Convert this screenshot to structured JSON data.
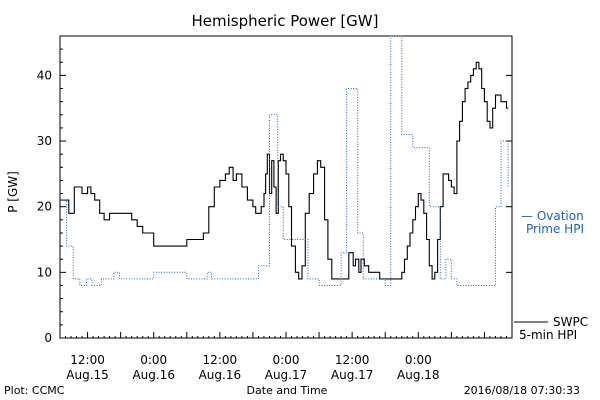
{
  "chart_data": {
    "type": "line",
    "title": "Hemispheric Power [GW]",
    "ylabel": "P [GW]",
    "xlabel": "Date and Time",
    "ylim": [
      0,
      46
    ],
    "yticks": [
      0,
      10,
      20,
      30,
      40
    ],
    "x_unit": "hours since 2016-08-15 00:00 UT",
    "xlim": [
      7,
      89
    ],
    "xtick_labels": [
      {
        "x": 12,
        "time": "12:00",
        "date": "Aug.15"
      },
      {
        "x": 24,
        "time": "0:00",
        "date": "Aug.16"
      },
      {
        "x": 36,
        "time": "12:00",
        "date": "Aug.16"
      },
      {
        "x": 48,
        "time": "0:00",
        "date": "Aug.17"
      },
      {
        "x": 60,
        "time": "12:00",
        "date": "Aug.17"
      },
      {
        "x": 72,
        "time": "0:00",
        "date": "Aug.18"
      }
    ],
    "series": [
      {
        "name": "SWPC 5-min HPI",
        "color": "#000000",
        "style": "solid",
        "x": [
          7.0,
          7.7,
          8.6,
          9.6,
          10.4,
          11.0,
          11.5,
          12.0,
          12.6,
          13.3,
          14.2,
          15.0,
          16.0,
          17.0,
          18.0,
          19.5,
          20.0,
          21.0,
          22.0,
          24.0,
          26.0,
          28.0,
          29.0,
          30.0,
          31.0,
          32.0,
          33.0,
          34.0,
          35.0,
          36.0,
          37.0,
          37.7,
          38.4,
          39.0,
          40.0,
          41.0,
          42.0,
          42.5,
          43.0,
          43.5,
          44.0,
          44.3,
          44.6,
          45.0,
          45.4,
          45.8,
          46.2,
          46.6,
          47.0,
          47.5,
          48.0,
          48.5,
          49.0,
          49.7,
          50.3,
          50.9,
          51.5,
          52.2,
          53.0,
          53.7,
          54.3,
          55.0,
          55.6,
          56.3,
          57.0,
          58.0,
          59.0,
          59.4,
          59.8,
          60.2,
          60.6,
          61.2,
          61.6,
          62.2,
          63.0,
          65.0,
          67.0,
          68.0,
          69.0,
          69.5,
          70.0,
          70.5,
          71.0,
          71.5,
          72.0,
          72.5,
          73.0,
          73.5,
          74.0,
          74.5,
          75.0,
          75.5,
          76.0,
          76.5,
          77.0,
          77.5,
          78.0,
          78.5,
          79.0,
          79.5,
          80.0,
          80.5,
          81.0,
          81.5,
          82.0,
          82.5,
          83.0,
          83.5,
          84.0,
          84.5,
          85.0,
          85.5,
          86.0,
          86.5,
          87.0,
          87.5,
          88.0,
          88.3
        ],
        "values": [
          21,
          21,
          19,
          23,
          23,
          22,
          22,
          23,
          22,
          21,
          19,
          18,
          19,
          19,
          19,
          19,
          18,
          17,
          16,
          14,
          14,
          14,
          14,
          15,
          15,
          15,
          16,
          20,
          23,
          24,
          25,
          26,
          24,
          25,
          23,
          21,
          20,
          19,
          19,
          20,
          22,
          25,
          28,
          22,
          27,
          23,
          19,
          27,
          28,
          27,
          25,
          20,
          14,
          10,
          9,
          11,
          19,
          22,
          25,
          27,
          26,
          18,
          12,
          9,
          9,
          9,
          9,
          13,
          13,
          11,
          12,
          10,
          12,
          11,
          10,
          9,
          9,
          9,
          10,
          12,
          14,
          16,
          18,
          20,
          22,
          21,
          19,
          15,
          11,
          9,
          10,
          15,
          20,
          25,
          25,
          24,
          23,
          22,
          30,
          33,
          36,
          38,
          39,
          40,
          41,
          42,
          41,
          38,
          36,
          33,
          32,
          35,
          37,
          37,
          36,
          36,
          35,
          35
        ],
        "label_lines": [
          "SWPC",
          "5-min HPI"
        ]
      },
      {
        "name": "Ovation Prime HPI",
        "color": "#2060c0",
        "style": "dotted",
        "x": [
          7.0,
          7.6,
          8.2,
          9.4,
          10.6,
          11.8,
          12.8,
          13.5,
          14.5,
          15.5,
          16.8,
          17.8,
          18.5,
          19.5,
          22.0,
          24.0,
          26.0,
          27.5,
          29.0,
          30.0,
          31.0,
          32.0,
          33.0,
          33.7,
          34.5,
          35.5,
          37.0,
          38.0,
          39.0,
          40.0,
          41.0,
          41.7,
          43.0,
          44.0,
          45.0,
          45.5,
          46.5,
          47.5,
          48.0,
          49.0,
          50.0,
          51.0,
          52.0,
          53.0,
          54.0,
          55.0,
          56.0,
          57.0,
          58.0,
          59.0,
          60.0,
          61.0,
          62.0,
          63.0,
          64.0,
          65.0,
          66.0,
          67.0,
          68.0,
          69.0,
          70.0,
          71.0,
          72.0,
          73.0,
          74.0,
          75.0,
          76.0,
          77.0,
          78.0,
          79.0,
          80.0,
          81.0,
          82.0,
          83.0,
          84.0,
          85.0,
          86.0,
          87.0,
          88.0,
          88.3
        ],
        "values": [
          21,
          21,
          14,
          9,
          8,
          9,
          8,
          8,
          9,
          9,
          10,
          9,
          9,
          9,
          9,
          10,
          10,
          10,
          10,
          9,
          9,
          9,
          9,
          10,
          9,
          9,
          9,
          9,
          9,
          9,
          9,
          9,
          11,
          11,
          34,
          34,
          20,
          15,
          15,
          15,
          15,
          15,
          9,
          9,
          8,
          8,
          8,
          8,
          13,
          38,
          38,
          16,
          9,
          9,
          9,
          9,
          8,
          46,
          46,
          31,
          31,
          29,
          29,
          29,
          20,
          20,
          9,
          12,
          9,
          8,
          8,
          8,
          8,
          8,
          8,
          8,
          20,
          30,
          30,
          23
        ],
        "label_lines": [
          "— Ovation",
          "Prime HPI"
        ]
      }
    ],
    "footer_left": "Plot: CCMC",
    "footer_right": "2016/08/18 07:30:33",
    "grid": false
  }
}
